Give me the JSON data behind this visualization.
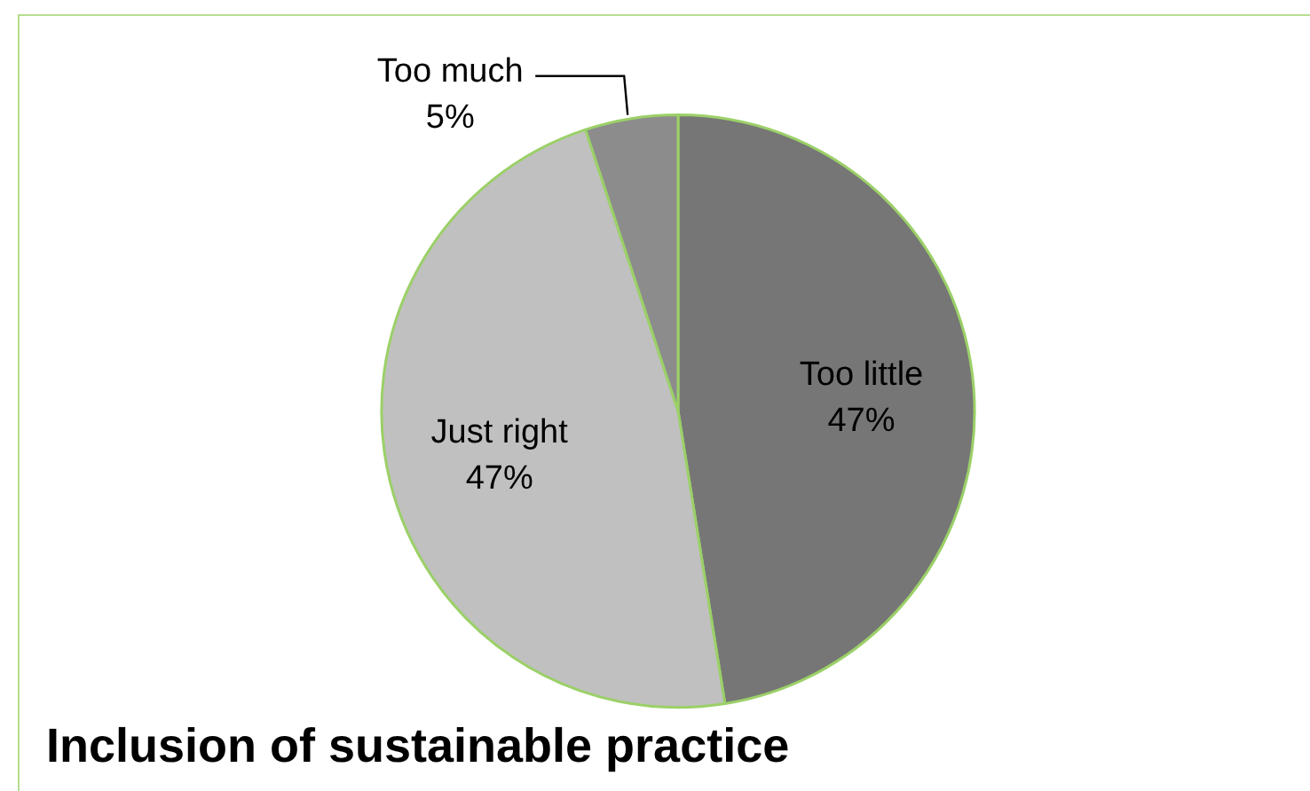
{
  "chart_data": {
    "type": "pie",
    "title": "Inclusion of sustainable practice",
    "categories": [
      "Too little",
      "Just right",
      "Too much"
    ],
    "values": [
      47,
      47,
      5
    ],
    "value_labels": [
      "47%",
      "47%",
      "5%"
    ],
    "colors": [
      "#767676",
      "#c0c0c0",
      "#8c8c8c"
    ],
    "legend": false
  }
}
